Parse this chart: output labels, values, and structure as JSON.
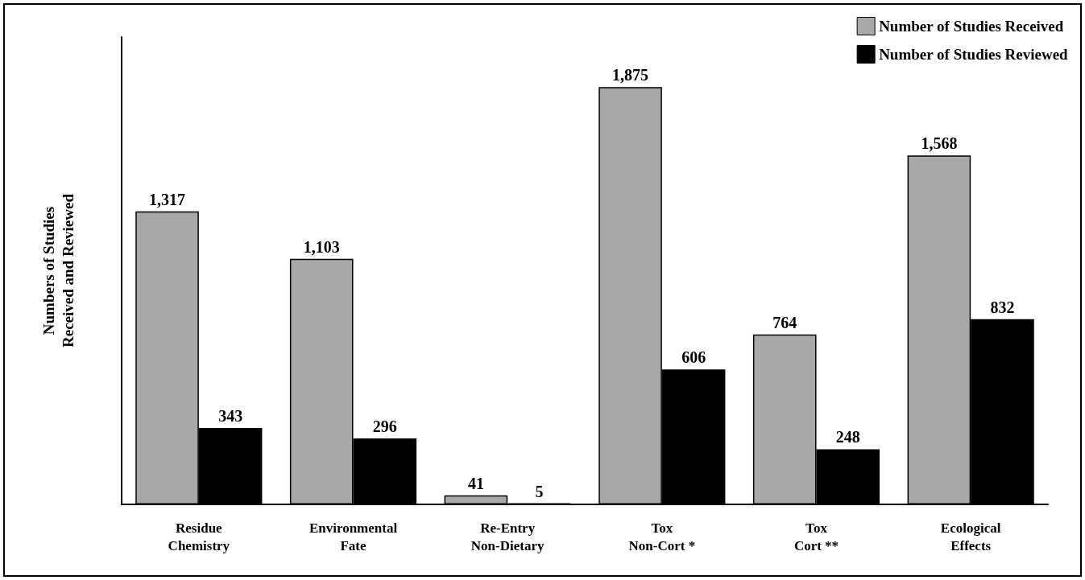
{
  "chart_data": {
    "type": "bar",
    "ylabel": "Numbers of Studies\nReceived and Reviewed",
    "categories": [
      "Residue\nChemistry",
      "Environmental\nFate",
      "Re-Entry\nNon-Dietary",
      "Tox\nNon-Cort *",
      "Tox\nCort **",
      "Ecological\nEffects"
    ],
    "series": [
      {
        "name": "Number of Studies Received",
        "color": "#a8a8a8",
        "values": [
          1317,
          1103,
          41,
          1875,
          764,
          1568
        ],
        "value_labels": [
          "1,317",
          "1,103",
          "41",
          "1,875",
          "764",
          "1,568"
        ]
      },
      {
        "name": "Number of Studies Reviewed",
        "color": "#000000",
        "values": [
          343,
          296,
          5,
          606,
          248,
          832
        ],
        "value_labels": [
          "343",
          "296",
          "5",
          "606",
          "248",
          "832"
        ]
      }
    ],
    "legend": "top right",
    "grid": false,
    "tick_labels": "x"
  }
}
